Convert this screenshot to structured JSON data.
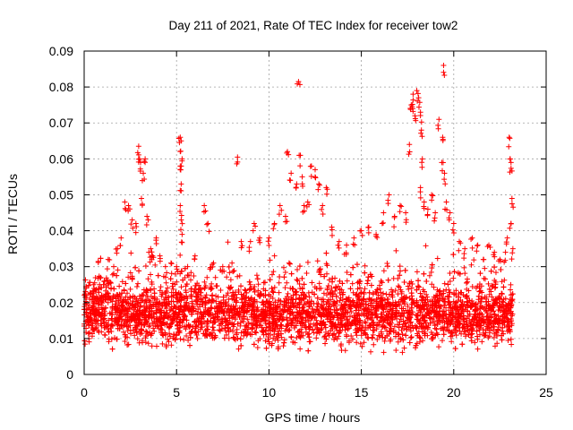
{
  "chart_data": {
    "type": "scatter",
    "title": "Day 211 of 2021, Rate Of TEC Index for receiver tow2",
    "xlabel": "GPS time / hours",
    "ylabel": "ROTI / TECUs",
    "xlim": [
      0,
      25
    ],
    "ylim": [
      0,
      0.09
    ],
    "x_ticks": [
      0,
      5,
      10,
      15,
      20,
      25
    ],
    "x_tick_labels": [
      "0",
      "5",
      "10",
      "15",
      "20",
      "25"
    ],
    "y_ticks": [
      0,
      0.01,
      0.02,
      0.03,
      0.04,
      0.05,
      0.06,
      0.07,
      0.08,
      0.09
    ],
    "y_tick_labels": [
      "0",
      "0.01",
      "0.02",
      "0.03",
      "0.04",
      "0.05",
      "0.06",
      "0.07",
      "0.08",
      "0.09"
    ],
    "grid": true,
    "marker": "+",
    "color": "#ff0000",
    "x_range_of_data_hours": [
      0,
      23.2
    ],
    "typical_band": [
      0.005,
      0.025
    ],
    "series": [
      {
        "name": "tow2",
        "points": [
          [
            0.1,
            0.022
          ],
          [
            0.3,
            0.018
          ],
          [
            0.5,
            0.025
          ],
          [
            0.7,
            0.021
          ],
          [
            0.9,
            0.027
          ],
          [
            1.1,
            0.026
          ],
          [
            1.3,
            0.032
          ],
          [
            1.6,
            0.03
          ],
          [
            1.8,
            0.035
          ],
          [
            2.0,
            0.038
          ],
          [
            2.2,
            0.048
          ],
          [
            2.4,
            0.047
          ],
          [
            2.6,
            0.043
          ],
          [
            2.8,
            0.042
          ],
          [
            2.95,
            0.0635
          ],
          [
            3.0,
            0.06
          ],
          [
            3.05,
            0.059
          ],
          [
            3.1,
            0.049
          ],
          [
            3.2,
            0.056
          ],
          [
            3.3,
            0.06
          ],
          [
            3.4,
            0.044
          ],
          [
            3.5,
            0.034
          ],
          [
            3.6,
            0.035
          ],
          [
            3.7,
            0.033
          ],
          [
            3.9,
            0.038
          ],
          [
            4.1,
            0.033
          ],
          [
            4.4,
            0.03
          ],
          [
            4.7,
            0.031
          ],
          [
            5.0,
            0.03
          ],
          [
            5.2,
            0.066
          ],
          [
            5.25,
            0.065
          ],
          [
            5.3,
            0.06
          ],
          [
            5.2,
            0.058
          ],
          [
            5.25,
            0.053
          ],
          [
            5.2,
            0.047
          ],
          [
            5.25,
            0.043
          ],
          [
            5.3,
            0.039
          ],
          [
            5.6,
            0.03
          ],
          [
            6.0,
            0.033
          ],
          [
            6.5,
            0.047
          ],
          [
            6.7,
            0.042
          ],
          [
            7.0,
            0.031
          ],
          [
            7.5,
            0.03
          ],
          [
            8.0,
            0.031
          ],
          [
            8.3,
            0.0605
          ],
          [
            8.5,
            0.037
          ],
          [
            9.0,
            0.037
          ],
          [
            9.2,
            0.042
          ],
          [
            9.5,
            0.038
          ],
          [
            10.0,
            0.038
          ],
          [
            10.3,
            0.042
          ],
          [
            10.6,
            0.047
          ],
          [
            10.9,
            0.044
          ],
          [
            11.0,
            0.062
          ],
          [
            11.2,
            0.056
          ],
          [
            11.5,
            0.053
          ],
          [
            11.6,
            0.0815
          ],
          [
            11.7,
            0.061
          ],
          [
            11.8,
            0.055
          ],
          [
            11.9,
            0.047
          ],
          [
            12.1,
            0.048
          ],
          [
            12.3,
            0.058
          ],
          [
            12.5,
            0.057
          ],
          [
            12.7,
            0.053
          ],
          [
            12.9,
            0.047
          ],
          [
            13.1,
            0.052
          ],
          [
            13.4,
            0.041
          ],
          [
            13.8,
            0.037
          ],
          [
            14.2,
            0.036
          ],
          [
            14.6,
            0.038
          ],
          [
            15.0,
            0.04
          ],
          [
            15.4,
            0.041
          ],
          [
            15.8,
            0.039
          ],
          [
            16.2,
            0.045
          ],
          [
            16.5,
            0.05
          ],
          [
            16.8,
            0.044
          ],
          [
            17.1,
            0.047
          ],
          [
            17.4,
            0.045
          ],
          [
            17.6,
            0.064
          ],
          [
            17.7,
            0.075
          ],
          [
            17.75,
            0.0745
          ],
          [
            17.8,
            0.078
          ],
          [
            17.9,
            0.072
          ],
          [
            18.0,
            0.079
          ],
          [
            18.1,
            0.077
          ],
          [
            18.2,
            0.073
          ],
          [
            18.25,
            0.068
          ],
          [
            18.3,
            0.06
          ],
          [
            18.2,
            0.052
          ],
          [
            18.4,
            0.048
          ],
          [
            18.6,
            0.046
          ],
          [
            18.8,
            0.05
          ],
          [
            19.0,
            0.045
          ],
          [
            19.2,
            0.071
          ],
          [
            19.35,
            0.059
          ],
          [
            19.4,
            0.066
          ],
          [
            19.45,
            0.086
          ],
          [
            19.5,
            0.056
          ],
          [
            19.6,
            0.048
          ],
          [
            19.8,
            0.045
          ],
          [
            20.0,
            0.042
          ],
          [
            20.3,
            0.037
          ],
          [
            20.6,
            0.035
          ],
          [
            21.0,
            0.038
          ],
          [
            21.3,
            0.036
          ],
          [
            21.6,
            0.032
          ],
          [
            21.9,
            0.036
          ],
          [
            22.2,
            0.034
          ],
          [
            22.5,
            0.032
          ],
          [
            22.8,
            0.034
          ],
          [
            22.9,
            0.038
          ],
          [
            23.0,
            0.066
          ],
          [
            23.05,
            0.06
          ],
          [
            23.1,
            0.059
          ],
          [
            23.15,
            0.049
          ],
          [
            23.1,
            0.042
          ],
          [
            23.2,
            0.035
          ]
        ]
      }
    ]
  }
}
